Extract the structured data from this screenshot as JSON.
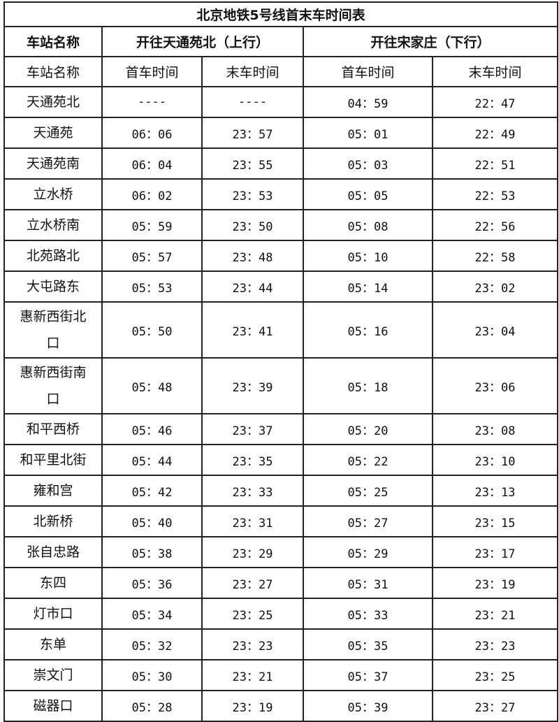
{
  "title": "北京地铁5号线首末车时间表",
  "headers": {
    "station": "车站名称",
    "northbound": "开往天通苑北（上行）",
    "southbound": "开往宋家庄（下行）"
  },
  "subheaders": [
    "车站名称",
    "首车时间",
    "末车时间",
    "首车时间",
    "末车时间"
  ],
  "rows": [
    [
      "天通苑北",
      "----",
      "----",
      "04：59",
      "22：47"
    ],
    [
      "天通苑",
      "06：06",
      "23：57",
      "05：01",
      "22：49"
    ],
    [
      "天通苑南",
      "06：04",
      "23：55",
      "05：03",
      "22：51"
    ],
    [
      "立水桥",
      "06：02",
      "23：53",
      "05：05",
      "22：53"
    ],
    [
      "立水桥南",
      "05：59",
      "23：50",
      "05：08",
      "22：56"
    ],
    [
      "北苑路北",
      "05：57",
      "23：48",
      "05：10",
      "22：58"
    ],
    [
      "大屯路东",
      "05：53",
      "23：44",
      "05：14",
      "23：02"
    ],
    [
      "惠新西街北口",
      "05：50",
      "23：41",
      "05：16",
      "23：04"
    ],
    [
      "惠新西街南口",
      "05：48",
      "23：39",
      "05：18",
      "23：06"
    ],
    [
      "和平西桥",
      "05：46",
      "23：37",
      "05：20",
      "23：08"
    ],
    [
      "和平里北街",
      "05：44",
      "23：35",
      "05：22",
      "23：10"
    ],
    [
      "雍和宫",
      "05：42",
      "23：33",
      "05：25",
      "23：13"
    ],
    [
      "北新桥",
      "05：40",
      "23：31",
      "05：27",
      "23：15"
    ],
    [
      "张自忠路",
      "05：38",
      "23：29",
      "05：29",
      "23：17"
    ],
    [
      "东四",
      "05：36",
      "23：27",
      "05：31",
      "23：19"
    ],
    [
      "灯市口",
      "05：34",
      "23：25",
      "05：33",
      "23：21"
    ],
    [
      "东单",
      "05：32",
      "23：23",
      "05：35",
      "23：23"
    ],
    [
      "崇文门",
      "05：30",
      "23：21",
      "05：37",
      "23：25"
    ],
    [
      "磁器口",
      "05：28",
      "23：19",
      "05：39",
      "23：27"
    ]
  ]
}
